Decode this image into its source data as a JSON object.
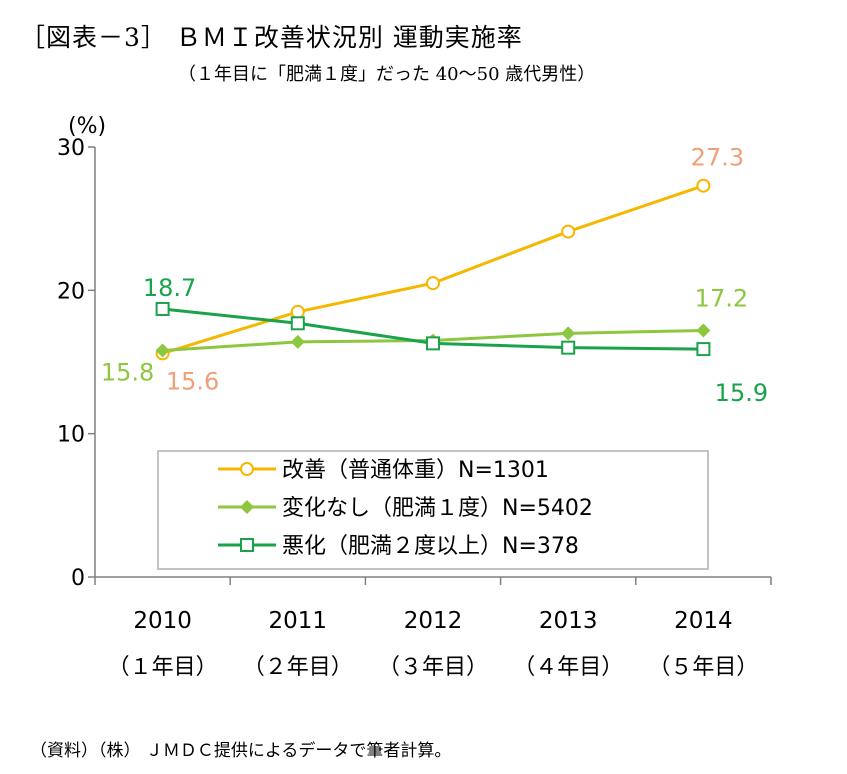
{
  "title": "［図表－3］ ＢＭＩ改善状況別 運動実施率",
  "subtitle": "（１年目に「肥満１度」だった 40～50 歳代男性）",
  "source": "（資料）（株） ＪＭＤＣ提供によるデータで筆者計算。",
  "chart_data": {
    "type": "line",
    "title": "［図表－3］ ＢＭＩ改善状況別 運動実施率",
    "subtitle": "（１年目に「肥満１度」だった 40～50 歳代男性）",
    "ylabel": "(%)",
    "ylim": [
      0,
      30
    ],
    "yticks": [
      "0",
      "10",
      "20",
      "30"
    ],
    "categories": [
      "2010",
      "2011",
      "2012",
      "2013",
      "2014"
    ],
    "category_sublabels": [
      "（１年目）",
      "（２年目）",
      "（３年目）",
      "（４年目）",
      "（５年目）"
    ],
    "legend_position": "bottom-inside",
    "series": [
      {
        "name": "改善（普通体重）N=1301",
        "values": [
          15.6,
          18.5,
          20.5,
          24.1,
          27.3
        ],
        "color": "#F5B700",
        "marker": "circle-open",
        "labels": [
          {
            "index": 0,
            "text": "15.6",
            "color": "#F0A078"
          },
          {
            "index": 4,
            "text": "27.3",
            "color": "#F0A078"
          }
        ]
      },
      {
        "name": "変化なし（肥満１度）N=5402",
        "values": [
          15.8,
          16.4,
          16.5,
          17.0,
          17.2
        ],
        "color": "#8DC63F",
        "marker": "diamond-filled",
        "labels": [
          {
            "index": 0,
            "text": "15.8",
            "color": "#8DC63F"
          },
          {
            "index": 4,
            "text": "17.2",
            "color": "#8DC63F"
          }
        ]
      },
      {
        "name": "悪化（肥満２度以上）N=378",
        "values": [
          18.7,
          17.7,
          16.3,
          16.0,
          15.9
        ],
        "color": "#1AA34A",
        "marker": "square-open",
        "labels": [
          {
            "index": 0,
            "text": "18.7",
            "color": "#1AA34A"
          },
          {
            "index": 4,
            "text": "15.9",
            "color": "#1AA34A"
          }
        ]
      }
    ]
  }
}
